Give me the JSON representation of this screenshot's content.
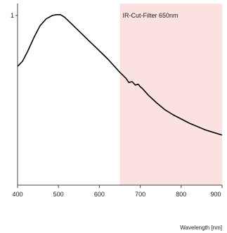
{
  "chart_data": {
    "type": "line",
    "title": "",
    "xlabel": "Wavelength [nm]",
    "ylabel": "",
    "xlim": [
      400,
      900
    ],
    "ylim": [
      0,
      1
    ],
    "x_ticks": [
      {
        "value": 400,
        "label": "400"
      },
      {
        "value": 500,
        "label": "500"
      },
      {
        "value": 600,
        "label": "600"
      },
      {
        "value": 700,
        "label": "700"
      },
      {
        "value": 800,
        "label": "800"
      },
      {
        "value": 900,
        "label": "900"
      }
    ],
    "y_ticks": [
      {
        "value": 1,
        "label": "1"
      }
    ],
    "grid": false,
    "series": [
      {
        "color": "#000000",
        "x": [
          400,
          412,
          425,
          440,
          455,
          470,
          485,
          495,
          505,
          515,
          530,
          545,
          560,
          575,
          590,
          605,
          620,
          635,
          650,
          665,
          672,
          680,
          688,
          695,
          700,
          705,
          720,
          740,
          760,
          780,
          800,
          820,
          840,
          860,
          880,
          900
        ],
        "y": [
          0.7,
          0.73,
          0.79,
          0.87,
          0.94,
          0.98,
          1.0,
          1.005,
          1.005,
          0.99,
          0.955,
          0.92,
          0.885,
          0.85,
          0.815,
          0.78,
          0.745,
          0.705,
          0.665,
          0.63,
          0.605,
          0.61,
          0.59,
          0.595,
          0.58,
          0.57,
          0.53,
          0.485,
          0.445,
          0.415,
          0.39,
          0.365,
          0.345,
          0.325,
          0.31,
          0.295
        ]
      }
    ],
    "annotations": [
      {
        "label": "IR-Cut-Filter 650nm",
        "x_start": 650,
        "x_end": 900,
        "fill": "#fce1e1"
      }
    ]
  }
}
